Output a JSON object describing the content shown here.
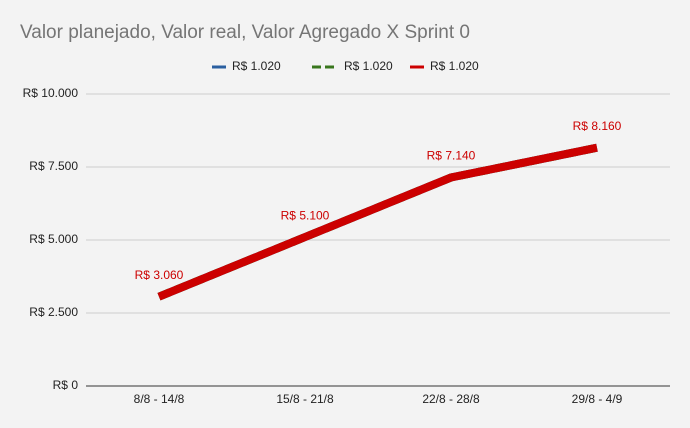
{
  "chart_data": {
    "type": "line",
    "title": "Valor planejado, Valor real, Valor Agregado X Sprint 0",
    "categories": [
      "8/8 - 14/8",
      "15/8 - 21/8",
      "22/8 - 28/8",
      "29/8 - 4/9"
    ],
    "series": [
      {
        "name": "R$ 1.020",
        "color": "#2a5fa0",
        "values": [
          3060,
          5100,
          7140,
          8160
        ]
      },
      {
        "name": "R$ 1.020",
        "color": "#38761d",
        "dash": true,
        "values": [
          3060,
          5100,
          7140,
          8160
        ]
      },
      {
        "name": "R$ 1.020",
        "color": "#cc0000",
        "values": [
          3060,
          5100,
          7140,
          8160
        ],
        "value_labels": [
          "R$ 3.060",
          "R$ 5.100",
          "R$ 7.140",
          "R$ 8.160"
        ]
      }
    ],
    "ylim": [
      0,
      10000
    ],
    "yticks": [
      {
        "value": 0,
        "label": "R$ 0"
      },
      {
        "value": 2500,
        "label": "R$ 2.500"
      },
      {
        "value": 5000,
        "label": "R$ 5.000"
      },
      {
        "value": 7500,
        "label": "R$ 7.500"
      },
      {
        "value": 10000,
        "label": "R$ 10.000"
      }
    ],
    "grid": true,
    "legend": "top"
  }
}
